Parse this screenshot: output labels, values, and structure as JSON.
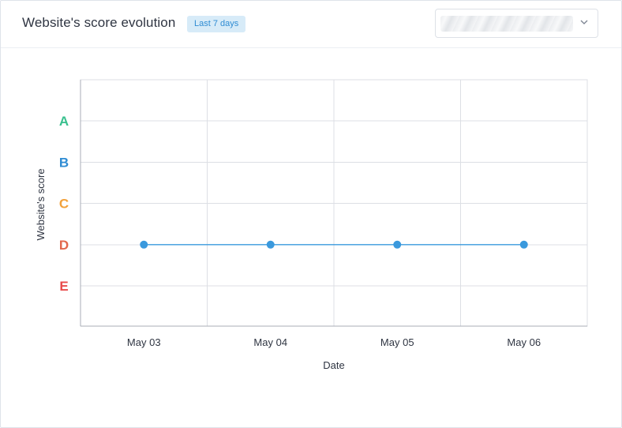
{
  "header": {
    "title": "Website's score evolution",
    "badge": "Last 7 days",
    "select_icon": "chevron-down-icon"
  },
  "chart_data": {
    "type": "line",
    "xlabel": "Date",
    "ylabel": "Website's score",
    "categories": [
      "May 03",
      "May 04",
      "May 05",
      "May 06"
    ],
    "y_ticks": [
      "A",
      "B",
      "C",
      "D",
      "E"
    ],
    "y_tick_colors": [
      "#39c08e",
      "#2f8cd3",
      "#f2a13a",
      "#e2684d",
      "#e84b4b"
    ],
    "series": [
      {
        "values": [
          "D",
          "D",
          "D",
          "D"
        ],
        "color": "#3a99dd"
      }
    ],
    "grid": true
  }
}
